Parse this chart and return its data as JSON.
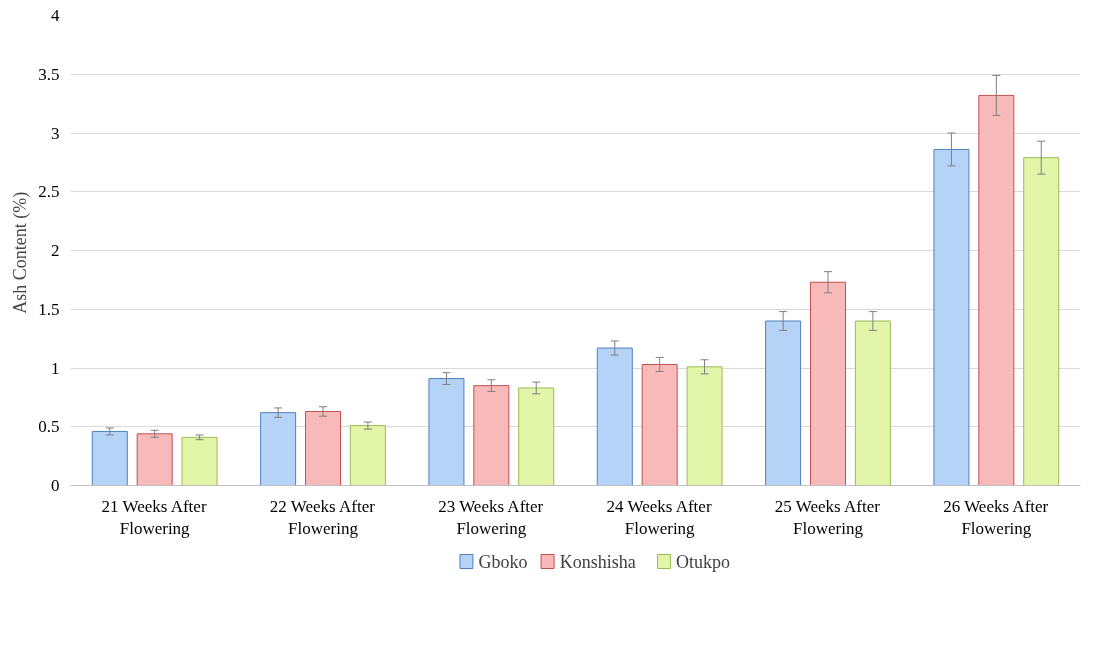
{
  "chart_data": {
    "type": "bar",
    "ylabel": "Ash  Content (%)",
    "categories": [
      "21 Weeks After Flowering",
      "22 Weeks After Flowering",
      "23 Weeks After Flowering",
      "24 Weeks After Flowering",
      "25 Weeks After Flowering",
      "26 Weeks After Flowering"
    ],
    "series": [
      {
        "name": "Gboko",
        "color": "#b5d3f7",
        "values": [
          0.46,
          0.62,
          0.91,
          1.17,
          1.4,
          2.86
        ],
        "errors": [
          0.03,
          0.04,
          0.05,
          0.06,
          0.08,
          0.14
        ]
      },
      {
        "name": "Konshisha",
        "color": "#f7b9b9",
        "values": [
          0.44,
          0.63,
          0.85,
          1.03,
          1.73,
          3.32
        ],
        "errors": [
          0.03,
          0.04,
          0.05,
          0.06,
          0.09,
          0.17
        ]
      },
      {
        "name": "Otukpo",
        "color": "#e2f5a9",
        "values": [
          0.41,
          0.51,
          0.83,
          1.01,
          1.4,
          2.79
        ],
        "errors": [
          0.02,
          0.03,
          0.05,
          0.06,
          0.08,
          0.14
        ]
      }
    ],
    "ylim": [
      0,
      4
    ],
    "yticks": [
      0,
      0.5,
      1,
      1.5,
      2,
      2.5,
      3,
      3.5,
      4
    ],
    "grid": "y",
    "legend": "bottom"
  }
}
